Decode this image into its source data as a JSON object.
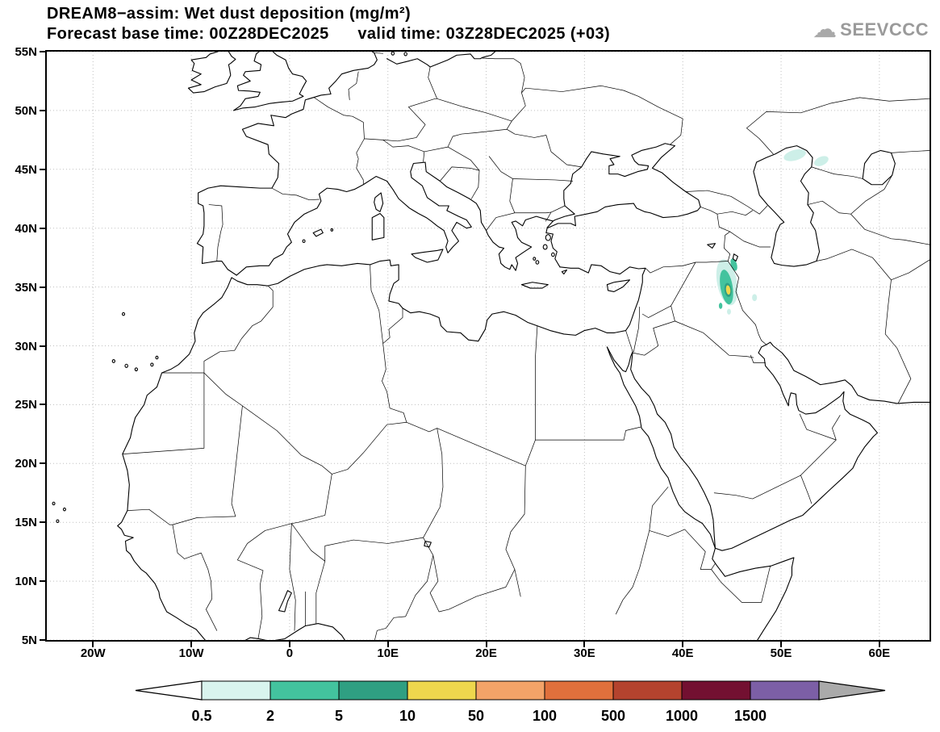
{
  "title": {
    "line1": "DREAM8−assim: Wet dust deposition (mg/m²)",
    "line2": "Forecast base time: 00Z28DEC2025      valid time: 03Z28DEC2025 (+03)"
  },
  "logo": {
    "text": "SEEVCCC"
  },
  "axes": {
    "lat_ticks": [
      {
        "label": "55N",
        "value": 55
      },
      {
        "label": "50N",
        "value": 50
      },
      {
        "label": "45N",
        "value": 45
      },
      {
        "label": "40N",
        "value": 40
      },
      {
        "label": "35N",
        "value": 35
      },
      {
        "label": "30N",
        "value": 30
      },
      {
        "label": "25N",
        "value": 25
      },
      {
        "label": "20N",
        "value": 20
      },
      {
        "label": "15N",
        "value": 15
      },
      {
        "label": "10N",
        "value": 10
      },
      {
        "label": "5N",
        "value": 5
      }
    ],
    "lon_ticks": [
      {
        "label": "20W",
        "value": -20
      },
      {
        "label": "10W",
        "value": -10
      },
      {
        "label": "0",
        "value": 0
      },
      {
        "label": "10E",
        "value": 10
      },
      {
        "label": "20E",
        "value": 20
      },
      {
        "label": "30E",
        "value": 30
      },
      {
        "label": "40E",
        "value": 40
      },
      {
        "label": "50E",
        "value": 50
      },
      {
        "label": "60E",
        "value": 60
      }
    ]
  },
  "colorbar": {
    "labels": [
      "0.5",
      "2",
      "5",
      "10",
      "50",
      "100",
      "500",
      "1000",
      "1500"
    ],
    "colors": [
      "#d9f4ee",
      "#43c39e",
      "#2f9f82",
      "#eed74d",
      "#f3a368",
      "#e0703c",
      "#b4432e",
      "#731031",
      "#7c5fa6"
    ],
    "left_arrow_color": "#ffffff",
    "right_arrow_color": "#aaaaaa"
  },
  "deposition_spots": [
    {
      "lon": 44.5,
      "lat": 35.4,
      "rx": 1.0,
      "ry": 2.0,
      "rot": -14,
      "color": "#cdefe8"
    },
    {
      "lon": 44.45,
      "lat": 35.0,
      "rx": 0.62,
      "ry": 1.5,
      "rot": -12,
      "color": "#43c39e"
    },
    {
      "lon": 45.2,
      "lat": 36.9,
      "rx": 0.3,
      "ry": 0.55,
      "rot": -22,
      "color": "#43c39e"
    },
    {
      "lon": 44.6,
      "lat": 34.75,
      "rx": 0.36,
      "ry": 0.6,
      "rot": -10,
      "color": "#2f9f82"
    },
    {
      "lon": 44.62,
      "lat": 34.75,
      "rx": 0.22,
      "ry": 0.4,
      "rot": -10,
      "color": "#eed74d"
    },
    {
      "lon": 43.85,
      "lat": 33.4,
      "rx": 0.18,
      "ry": 0.26,
      "rot": 0,
      "color": "#43c39e"
    },
    {
      "lon": 44.7,
      "lat": 32.9,
      "rx": 0.2,
      "ry": 0.25,
      "rot": 0,
      "color": "#cdefe8"
    },
    {
      "lon": 51.4,
      "lat": 46.2,
      "rx": 1.15,
      "ry": 0.45,
      "rot": -12,
      "color": "#cdefe8"
    },
    {
      "lon": 54.1,
      "lat": 45.7,
      "rx": 0.75,
      "ry": 0.38,
      "rot": -18,
      "color": "#cdefe8"
    },
    {
      "lon": 47.3,
      "lat": 34.1,
      "rx": 0.25,
      "ry": 0.3,
      "rot": 0,
      "color": "#cdefe8"
    }
  ]
}
